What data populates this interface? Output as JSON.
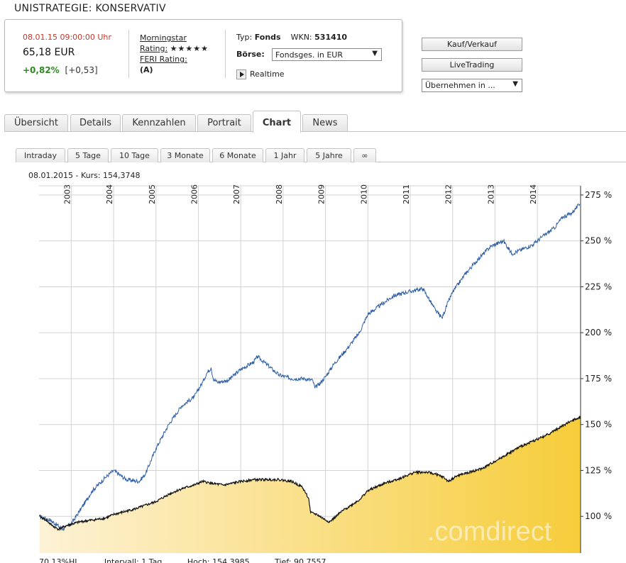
{
  "page": {
    "title": "UNISTRATEGIE: KONSERVATIV"
  },
  "quote": {
    "datetime": "08.01.15  09:00:00 Uhr",
    "price": "65,18 EUR",
    "change_pct": "+0,82%",
    "change_abs": "[+0,53]",
    "morningstar_label": "Morningstar",
    "rating_label": "Rating:",
    "rating_stars": "★★★★★",
    "feri_label": "FERI Rating:",
    "feri_value": "(A)",
    "typ_label": "Typ:",
    "typ_value": "Fonds",
    "wkn_label": "WKN:",
    "wkn_value": "531410",
    "boerse_label": "Börse:",
    "boerse_value": "Fondsges. in EUR",
    "realtime_label": "Realtime"
  },
  "actions": {
    "buy_sell": "Kauf/Verkauf",
    "live_trading": "LiveTrading",
    "take_over": "Übernehmen in ..."
  },
  "tabs": [
    "Übersicht",
    "Details",
    "Kennzahlen",
    "Portrait",
    "Chart",
    "News"
  ],
  "active_tab": "Chart",
  "range_tabs": [
    "Intraday",
    "5 Tage",
    "10 Tage",
    "3 Monate",
    "6 Monate",
    "1 Jahr",
    "5 Jahre",
    "∞"
  ],
  "chart_info": "08.01.2015  -  Kurs: 154,3748",
  "footer": {
    "hl": "70,13%HL",
    "interval": "Intervall: 1 Tag",
    "high": "Hoch: 154,3985",
    "low": "Tief: 90,7557"
  },
  "chart_data": {
    "type": "line",
    "x_label_position": "top",
    "y_axis_position": "right",
    "y_unit": "%",
    "x_tick_labels": [
      "2003",
      "2004",
      "2005",
      "2006",
      "2007",
      "2008",
      "2009",
      "2010",
      "2011",
      "2012",
      "2013",
      "2014"
    ],
    "y_tick_labels": [
      "100 %",
      "125 %",
      "150 %",
      "175 %",
      "200 %",
      "225 %",
      "250 %",
      "275 %"
    ],
    "y_ticks": [
      100,
      125,
      150,
      175,
      200,
      225,
      250,
      275
    ],
    "ylim": [
      80,
      280
    ],
    "xlim": [
      2002.24,
      2015.02
    ],
    "grid": true,
    "watermark": ".comdirect",
    "colors": {
      "benchmark": "#2f5fa5",
      "fund_line": "#111111",
      "fund_fill": "#f6cd3a"
    },
    "series": [
      {
        "key": "benchmark",
        "x": [
          2002.25,
          2002.5,
          2002.8,
          2003.0,
          2003.2,
          2003.5,
          2003.8,
          2004.0,
          2004.3,
          2004.6,
          2004.75,
          2005.0,
          2005.3,
          2005.6,
          2005.9,
          2006.1,
          2006.2,
          2006.3,
          2006.35,
          2006.45,
          2006.7,
          2007.0,
          2007.3,
          2007.4,
          2007.6,
          2007.9,
          2008.2,
          2008.5,
          2008.7,
          2008.75,
          2008.85,
          2009.0,
          2009.2,
          2009.5,
          2009.8,
          2010.0,
          2010.3,
          2010.6,
          2010.9,
          2011.1,
          2011.3,
          2011.4,
          2011.6,
          2011.75,
          2011.9,
          2012.0,
          2012.3,
          2012.6,
          2012.9,
          2013.2,
          2013.4,
          2013.6,
          2013.9,
          2014.1,
          2014.4,
          2014.6,
          2014.8,
          2015.0
        ],
        "values": [
          100,
          98,
          93,
          96,
          103,
          114,
          121,
          125,
          120,
          119,
          123,
          137,
          150,
          160,
          165,
          173,
          178,
          181,
          175,
          173,
          174,
          180,
          184,
          187,
          183,
          177,
          175,
          175,
          174,
          170,
          172,
          176,
          183,
          191,
          200,
          210,
          215,
          220,
          222,
          223,
          224,
          220,
          212,
          208,
          217,
          222,
          232,
          240,
          247,
          250,
          243,
          245,
          248,
          252,
          257,
          263,
          265,
          270
        ]
      },
      {
        "key": "fund",
        "x": [
          2002.25,
          2002.4,
          2002.55,
          2002.7,
          2002.9,
          2003.2,
          2003.5,
          2003.8,
          2004.0,
          2004.5,
          2005.0,
          2005.3,
          2005.6,
          2005.9,
          2006.1,
          2006.3,
          2006.6,
          2007.0,
          2007.3,
          2007.6,
          2007.9,
          2008.2,
          2008.45,
          2008.6,
          2008.65,
          2008.8,
          2009.0,
          2009.1,
          2009.4,
          2009.8,
          2010.0,
          2010.4,
          2010.8,
          2011.1,
          2011.4,
          2011.6,
          2011.8,
          2011.9,
          2012.1,
          2012.4,
          2012.7,
          2013.0,
          2013.3,
          2013.6,
          2013.9,
          2014.2,
          2014.5,
          2014.8,
          2014.9,
          2015.02
        ],
        "values": [
          100,
          98,
          95,
          93,
          95,
          97,
          98,
          99,
          101,
          104,
          108,
          112,
          115,
          117,
          119,
          118,
          117,
          119,
          120,
          120,
          120,
          119,
          116,
          110,
          102,
          101,
          98,
          97,
          103,
          109,
          114,
          118,
          121,
          124,
          124,
          123,
          121,
          119,
          122,
          124,
          126,
          130,
          134,
          138,
          141,
          144,
          148,
          152,
          153,
          154.37
        ]
      }
    ]
  }
}
